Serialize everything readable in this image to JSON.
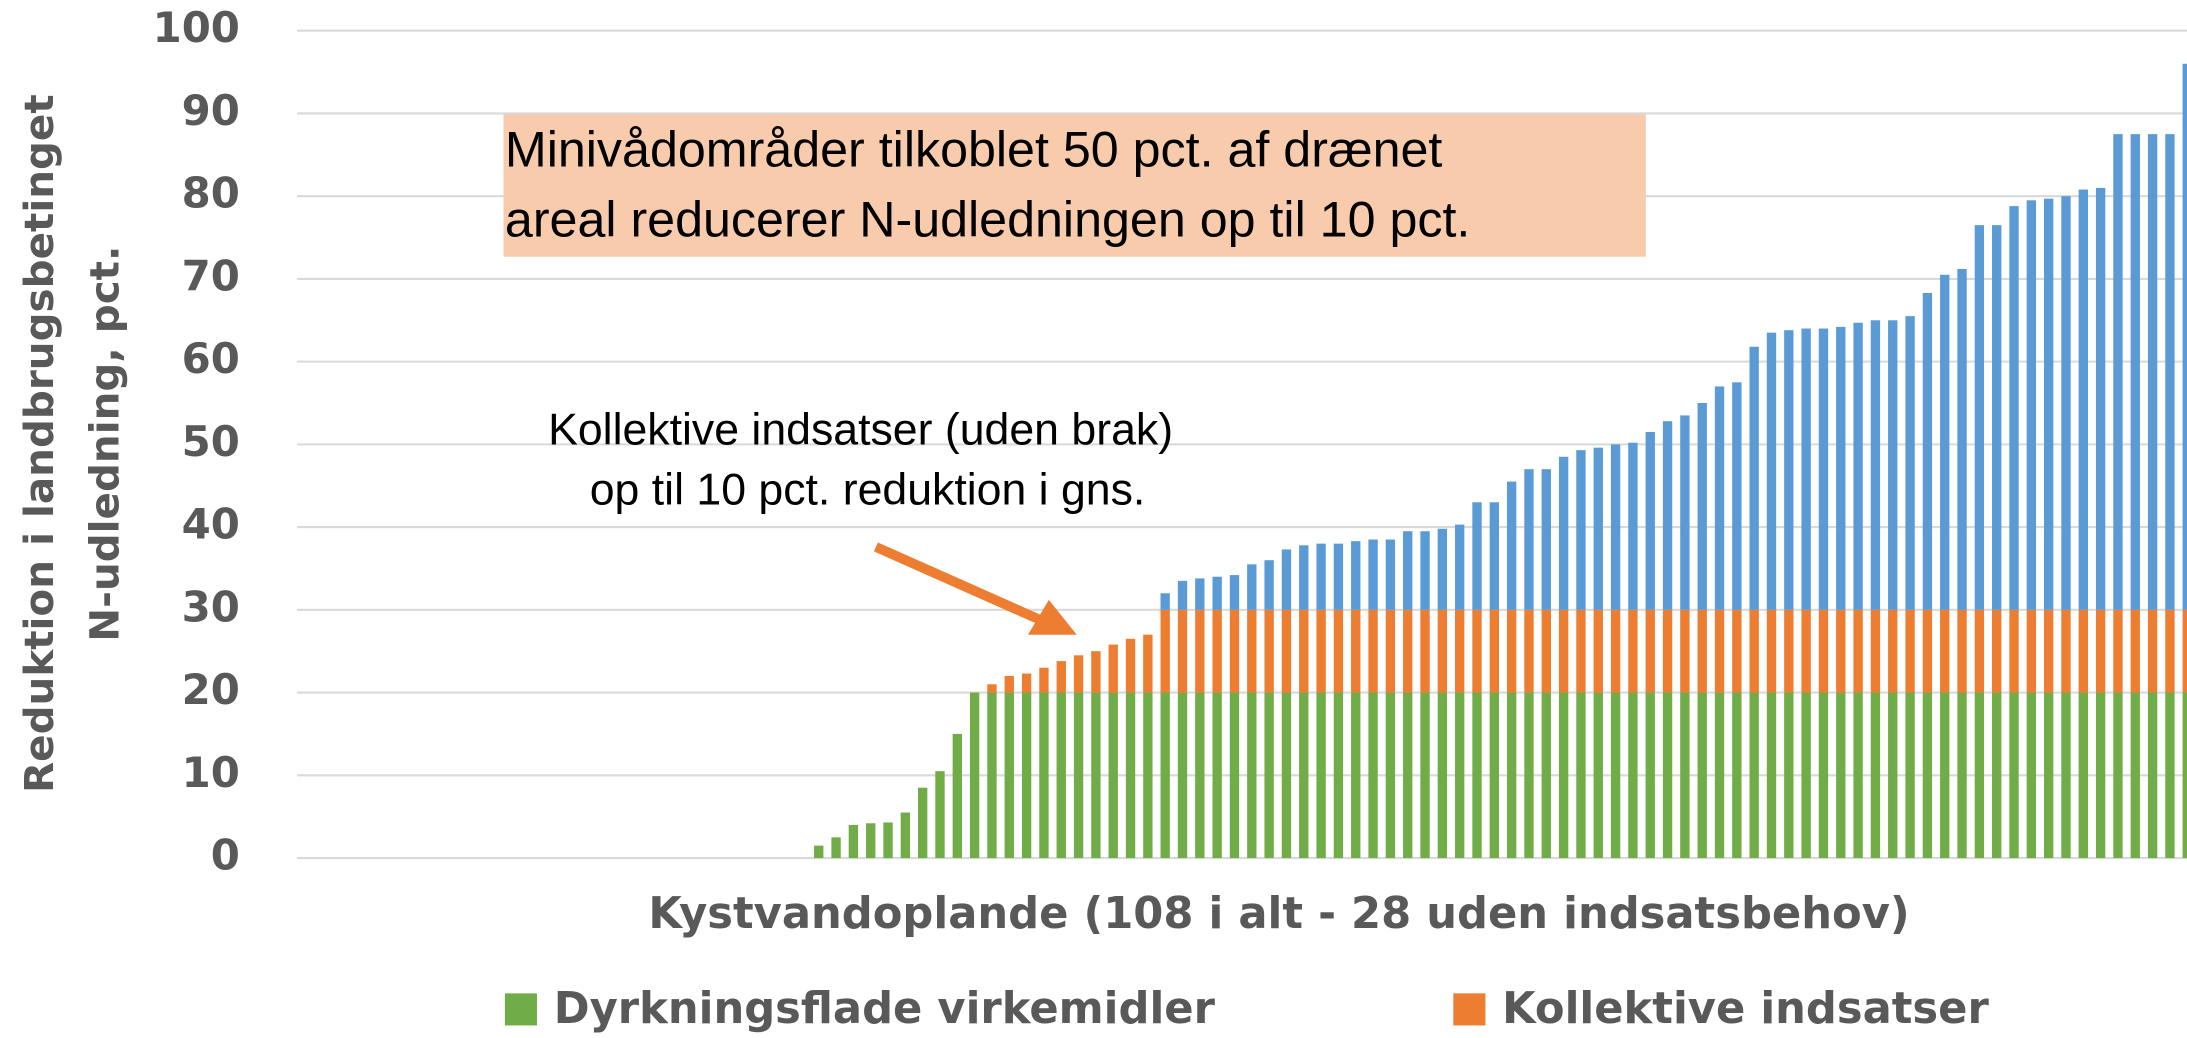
{
  "chart_data": {
    "type": "stacked_bar",
    "ylabel": [
      "Reduktion i landbrugsbetinget",
      "N-udledning, pct."
    ],
    "xlabel": "Kystvandoplande (108 i alt - 28 uden indsatsbehov)",
    "annotations": [
      {
        "lines": [
          "Minivådområder tilkoblet 50 pct. af drænet",
          "areal reducerer N-udledningen op til 10 pct."
        ]
      },
      {
        "lines": [
          "Kollektive indsatser (uden brak)",
          "op til 10 pct. reduktion  i gns."
        ]
      }
    ],
    "categories": [
      null,
      null,
      null,
      null,
      null,
      null,
      null,
      null,
      null,
      null,
      null,
      null,
      null,
      null,
      null,
      null,
      null,
      null,
      null,
      null,
      null,
      null,
      null,
      null,
      null,
      null,
      null,
      null,
      null,
      null,
      null,
      null,
      null,
      null,
      null,
      null,
      null,
      null,
      null,
      null,
      null,
      null,
      null,
      null,
      null,
      null,
      null,
      null,
      null,
      null,
      null,
      null,
      null,
      null,
      null,
      null,
      null,
      null,
      null,
      null,
      null,
      null,
      null,
      null,
      null,
      null,
      null,
      null,
      null,
      null,
      null,
      null,
      null,
      null,
      null,
      null,
      null,
      null,
      null,
      null,
      null,
      null,
      null,
      null,
      null,
      null,
      null,
      null,
      null,
      null,
      null,
      null,
      null,
      null,
      null,
      null,
      null,
      null,
      null,
      null,
      null,
      null,
      null,
      null,
      null,
      null,
      null,
      null
    ],
    "series": [
      {
        "name": "Dyrkningsflade virkemidler",
        "color": "#70ad47",
        "values": [
          0,
          0,
          0,
          0,
          0,
          0,
          0,
          0,
          0,
          0,
          0,
          0,
          0,
          0,
          0,
          0,
          0,
          0,
          0,
          0,
          0,
          0,
          0,
          0,
          0,
          0,
          0,
          0,
          1.5,
          2.5,
          4,
          4.2,
          4.3,
          5.5,
          8.5,
          10.5,
          15,
          20,
          20,
          20,
          20,
          20,
          20,
          20,
          20,
          20,
          20,
          20,
          20,
          20,
          20,
          20,
          20,
          20,
          20,
          20,
          20,
          20,
          20,
          20,
          20,
          20,
          20,
          20,
          20,
          20,
          20,
          20,
          20,
          20,
          20,
          20,
          20,
          20,
          20,
          20,
          20,
          20,
          20,
          20,
          20,
          20,
          20,
          20,
          20,
          20,
          20,
          20,
          20,
          20,
          20,
          20,
          20,
          20,
          20,
          20,
          20,
          20,
          20,
          20,
          20,
          20,
          20,
          20,
          20,
          20,
          20,
          20
        ]
      },
      {
        "name": "Kollektive indsatser",
        "color": "#ed7d31",
        "values": [
          0,
          0,
          0,
          0,
          0,
          0,
          0,
          0,
          0,
          0,
          0,
          0,
          0,
          0,
          0,
          0,
          0,
          0,
          0,
          0,
          0,
          0,
          0,
          0,
          0,
          0,
          0,
          0,
          0,
          0,
          0,
          0,
          0,
          0,
          0,
          0,
          0,
          0,
          1,
          2,
          2.3,
          3,
          3.8,
          4.5,
          5,
          5.8,
          6.5,
          7,
          10,
          10,
          10,
          10,
          10,
          10,
          10,
          10,
          10,
          10,
          10,
          10,
          10,
          10,
          10,
          10,
          10,
          10,
          10,
          10,
          10,
          10,
          10,
          10,
          10,
          10,
          10,
          10,
          10,
          10,
          10,
          10,
          10,
          10,
          10,
          10,
          10,
          10,
          10,
          10,
          10,
          10,
          10,
          10,
          10,
          10,
          10,
          10,
          10,
          10,
          10,
          10,
          10,
          10,
          10,
          10,
          10,
          10,
          10,
          10
        ]
      },
      {
        "color": "#5b9bd5",
        "values": [
          0,
          0,
          0,
          0,
          0,
          0,
          0,
          0,
          0,
          0,
          0,
          0,
          0,
          0,
          0,
          0,
          0,
          0,
          0,
          0,
          0,
          0,
          0,
          0,
          0,
          0,
          0,
          0,
          0,
          0,
          0,
          0,
          0,
          0,
          0,
          0,
          0,
          0,
          0,
          0,
          0,
          0,
          0,
          0,
          0,
          0,
          0,
          0,
          2,
          3.5,
          3.8,
          4,
          4.2,
          5.5,
          6,
          7.3,
          7.8,
          8,
          8,
          8.3,
          8.5,
          8.5,
          9.5,
          9.5,
          9.8,
          10.3,
          13,
          13,
          15.5,
          17,
          17,
          18.5,
          19.3,
          19.6,
          20,
          20.2,
          21.5,
          22.8,
          23.5,
          25,
          27,
          27.5,
          31.8,
          33.5,
          33.8,
          34,
          34,
          34.2,
          34.7,
          35,
          35,
          35.5,
          38.3,
          40.5,
          41.2,
          46.5,
          46.5,
          48.8,
          49.5,
          49.7,
          50,
          50.8,
          51,
          57.5,
          57.5,
          57.5,
          57.5,
          66
        ]
      }
    ],
    "ylim": [
      0,
      100
    ],
    "yticks": [
      0,
      10,
      20,
      30,
      40,
      50,
      60,
      70,
      80,
      90,
      100
    ],
    "grid": true
  }
}
